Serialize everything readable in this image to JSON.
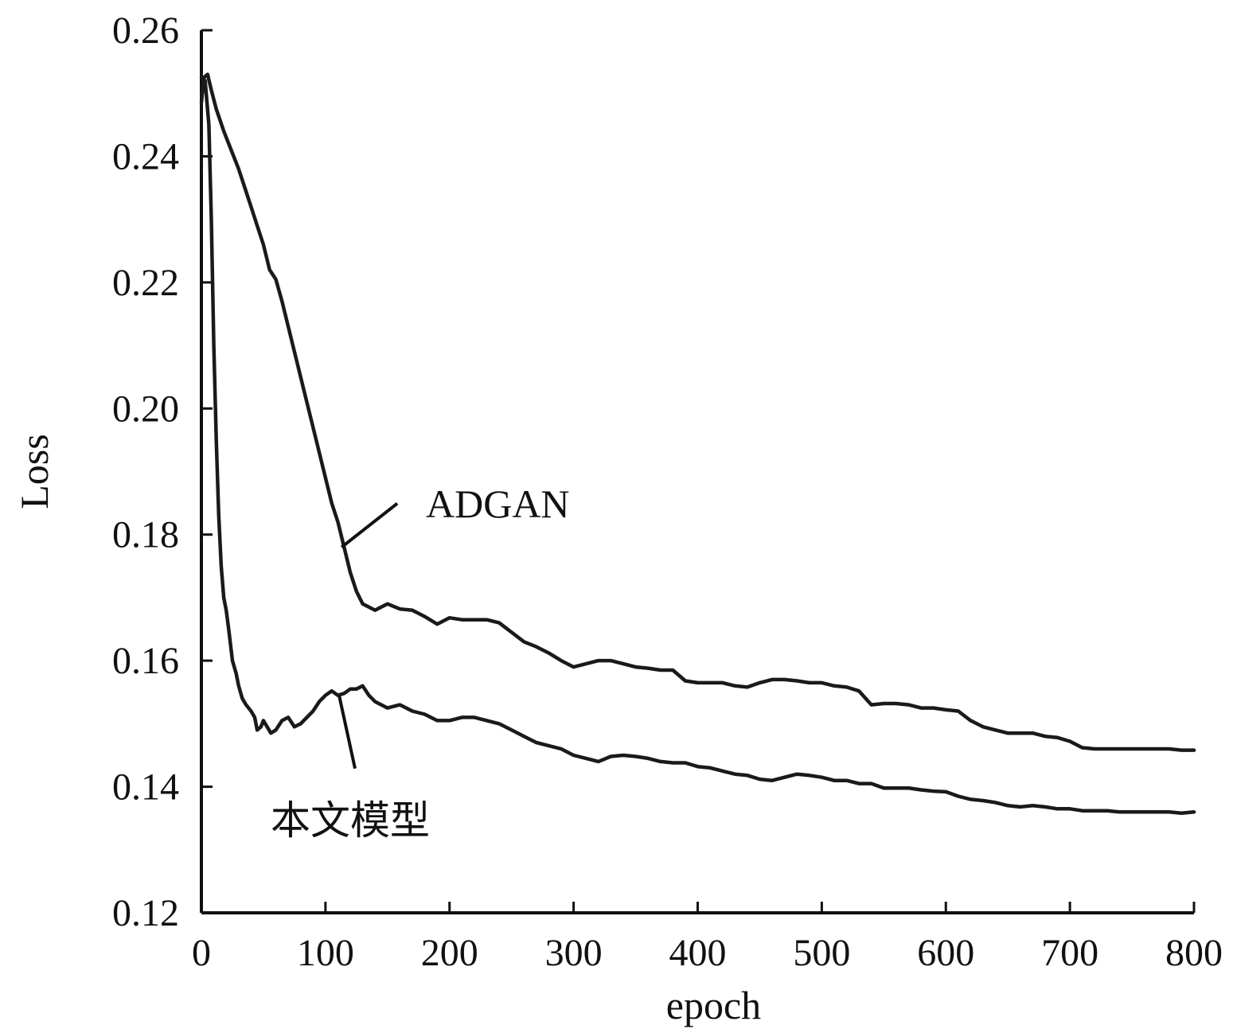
{
  "chart_data": {
    "type": "line",
    "title": "",
    "xlabel": "epoch",
    "ylabel": "Loss",
    "xlim": [
      0,
      800
    ],
    "ylim": [
      0.12,
      0.26
    ],
    "x_ticks": [
      0,
      100,
      200,
      300,
      400,
      500,
      600,
      700,
      800
    ],
    "x_tick_labels": [
      "0",
      "100",
      "200",
      "300",
      "400",
      "500",
      "600",
      "700",
      "800"
    ],
    "y_ticks": [
      0.12,
      0.14,
      0.16,
      0.18,
      0.2,
      0.22,
      0.24,
      0.26
    ],
    "y_tick_labels": [
      "0.12",
      "0.14",
      "0.16",
      "0.18",
      "0.20",
      "0.22",
      "0.24",
      "0.26"
    ],
    "grid": false,
    "series": [
      {
        "name": "ADGAN",
        "color": "#1a1a1a",
        "label_anchor": [
          113,
          0.178
        ],
        "points": [
          [
            0,
            0.2485
          ],
          [
            2,
            0.2525
          ],
          [
            5,
            0.253
          ],
          [
            8,
            0.2505
          ],
          [
            12,
            0.2475
          ],
          [
            18,
            0.244
          ],
          [
            25,
            0.2405
          ],
          [
            30,
            0.238
          ],
          [
            35,
            0.235
          ],
          [
            40,
            0.232
          ],
          [
            45,
            0.229
          ],
          [
            50,
            0.226
          ],
          [
            55,
            0.222
          ],
          [
            60,
            0.2205
          ],
          [
            65,
            0.217
          ],
          [
            70,
            0.213
          ],
          [
            75,
            0.209
          ],
          [
            80,
            0.205
          ],
          [
            85,
            0.201
          ],
          [
            90,
            0.197
          ],
          [
            95,
            0.193
          ],
          [
            100,
            0.189
          ],
          [
            105,
            0.185
          ],
          [
            110,
            0.182
          ],
          [
            115,
            0.178
          ],
          [
            120,
            0.174
          ],
          [
            125,
            0.171
          ],
          [
            130,
            0.169
          ],
          [
            135,
            0.1685
          ],
          [
            140,
            0.168
          ],
          [
            145,
            0.1685
          ],
          [
            150,
            0.169
          ],
          [
            160,
            0.1682
          ],
          [
            170,
            0.168
          ],
          [
            180,
            0.167
          ],
          [
            190,
            0.1658
          ],
          [
            200,
            0.1668
          ],
          [
            210,
            0.1665
          ],
          [
            220,
            0.1665
          ],
          [
            230,
            0.1665
          ],
          [
            240,
            0.166
          ],
          [
            250,
            0.1645
          ],
          [
            260,
            0.163
          ],
          [
            270,
            0.1622
          ],
          [
            280,
            0.1612
          ],
          [
            290,
            0.16
          ],
          [
            300,
            0.159
          ],
          [
            310,
            0.1595
          ],
          [
            320,
            0.16
          ],
          [
            330,
            0.16
          ],
          [
            340,
            0.1595
          ],
          [
            350,
            0.159
          ],
          [
            360,
            0.1588
          ],
          [
            370,
            0.1585
          ],
          [
            380,
            0.1585
          ],
          [
            390,
            0.1568
          ],
          [
            400,
            0.1565
          ],
          [
            410,
            0.1565
          ],
          [
            420,
            0.1565
          ],
          [
            430,
            0.156
          ],
          [
            440,
            0.1558
          ],
          [
            450,
            0.1565
          ],
          [
            460,
            0.157
          ],
          [
            470,
            0.157
          ],
          [
            480,
            0.1568
          ],
          [
            490,
            0.1565
          ],
          [
            500,
            0.1565
          ],
          [
            510,
            0.156
          ],
          [
            520,
            0.1558
          ],
          [
            530,
            0.1552
          ],
          [
            540,
            0.153
          ],
          [
            550,
            0.1532
          ],
          [
            560,
            0.1532
          ],
          [
            570,
            0.153
          ],
          [
            580,
            0.1525
          ],
          [
            590,
            0.1525
          ],
          [
            600,
            0.1522
          ],
          [
            610,
            0.152
          ],
          [
            620,
            0.1505
          ],
          [
            630,
            0.1495
          ],
          [
            640,
            0.149
          ],
          [
            650,
            0.1485
          ],
          [
            660,
            0.1485
          ],
          [
            670,
            0.1485
          ],
          [
            680,
            0.148
          ],
          [
            690,
            0.1478
          ],
          [
            700,
            0.1472
          ],
          [
            710,
            0.1462
          ],
          [
            720,
            0.146
          ],
          [
            730,
            0.146
          ],
          [
            740,
            0.146
          ],
          [
            750,
            0.146
          ],
          [
            760,
            0.146
          ],
          [
            770,
            0.146
          ],
          [
            780,
            0.146
          ],
          [
            790,
            0.1458
          ],
          [
            800,
            0.1458
          ]
        ]
      },
      {
        "name": "本文模型",
        "color": "#1a1a1a",
        "label_anchor": [
          111,
          0.1545
        ],
        "points": [
          [
            0,
            0.2525
          ],
          [
            3,
            0.252
          ],
          [
            6,
            0.245
          ],
          [
            8,
            0.23
          ],
          [
            10,
            0.21
          ],
          [
            12,
            0.195
          ],
          [
            14,
            0.183
          ],
          [
            16,
            0.175
          ],
          [
            18,
            0.17
          ],
          [
            20,
            0.168
          ],
          [
            22,
            0.165
          ],
          [
            25,
            0.16
          ],
          [
            28,
            0.158
          ],
          [
            30,
            0.156
          ],
          [
            33,
            0.154
          ],
          [
            36,
            0.153
          ],
          [
            40,
            0.152
          ],
          [
            43,
            0.151
          ],
          [
            45,
            0.149
          ],
          [
            48,
            0.1495
          ],
          [
            50,
            0.1505
          ],
          [
            53,
            0.1495
          ],
          [
            56,
            0.1485
          ],
          [
            60,
            0.149
          ],
          [
            65,
            0.1505
          ],
          [
            70,
            0.151
          ],
          [
            75,
            0.1495
          ],
          [
            80,
            0.15
          ],
          [
            85,
            0.151
          ],
          [
            90,
            0.152
          ],
          [
            95,
            0.1535
          ],
          [
            100,
            0.1545
          ],
          [
            105,
            0.1552
          ],
          [
            110,
            0.1545
          ],
          [
            115,
            0.1548
          ],
          [
            120,
            0.1555
          ],
          [
            125,
            0.1555
          ],
          [
            130,
            0.156
          ],
          [
            135,
            0.1545
          ],
          [
            140,
            0.1535
          ],
          [
            150,
            0.1525
          ],
          [
            160,
            0.153
          ],
          [
            170,
            0.152
          ],
          [
            180,
            0.1515
          ],
          [
            190,
            0.1505
          ],
          [
            200,
            0.1505
          ],
          [
            210,
            0.151
          ],
          [
            220,
            0.151
          ],
          [
            230,
            0.1505
          ],
          [
            240,
            0.15
          ],
          [
            250,
            0.149
          ],
          [
            260,
            0.148
          ],
          [
            270,
            0.147
          ],
          [
            280,
            0.1465
          ],
          [
            290,
            0.146
          ],
          [
            300,
            0.145
          ],
          [
            310,
            0.1445
          ],
          [
            320,
            0.144
          ],
          [
            330,
            0.1448
          ],
          [
            340,
            0.145
          ],
          [
            350,
            0.1448
          ],
          [
            360,
            0.1445
          ],
          [
            370,
            0.144
          ],
          [
            380,
            0.1438
          ],
          [
            390,
            0.1438
          ],
          [
            400,
            0.1432
          ],
          [
            410,
            0.143
          ],
          [
            420,
            0.1425
          ],
          [
            430,
            0.142
          ],
          [
            440,
            0.1418
          ],
          [
            450,
            0.1412
          ],
          [
            460,
            0.141
          ],
          [
            470,
            0.1415
          ],
          [
            480,
            0.142
          ],
          [
            490,
            0.1418
          ],
          [
            500,
            0.1415
          ],
          [
            510,
            0.141
          ],
          [
            520,
            0.141
          ],
          [
            530,
            0.1405
          ],
          [
            540,
            0.1405
          ],
          [
            550,
            0.1398
          ],
          [
            560,
            0.1398
          ],
          [
            570,
            0.1398
          ],
          [
            580,
            0.1395
          ],
          [
            590,
            0.1393
          ],
          [
            600,
            0.1392
          ],
          [
            610,
            0.1385
          ],
          [
            620,
            0.138
          ],
          [
            630,
            0.1378
          ],
          [
            640,
            0.1375
          ],
          [
            650,
            0.137
          ],
          [
            660,
            0.1368
          ],
          [
            670,
            0.137
          ],
          [
            680,
            0.1368
          ],
          [
            690,
            0.1365
          ],
          [
            700,
            0.1365
          ],
          [
            710,
            0.1362
          ],
          [
            720,
            0.1362
          ],
          [
            730,
            0.1362
          ],
          [
            740,
            0.136
          ],
          [
            750,
            0.136
          ],
          [
            760,
            0.136
          ],
          [
            770,
            0.136
          ],
          [
            780,
            0.136
          ],
          [
            790,
            0.1358
          ],
          [
            800,
            0.136
          ]
        ]
      }
    ]
  }
}
